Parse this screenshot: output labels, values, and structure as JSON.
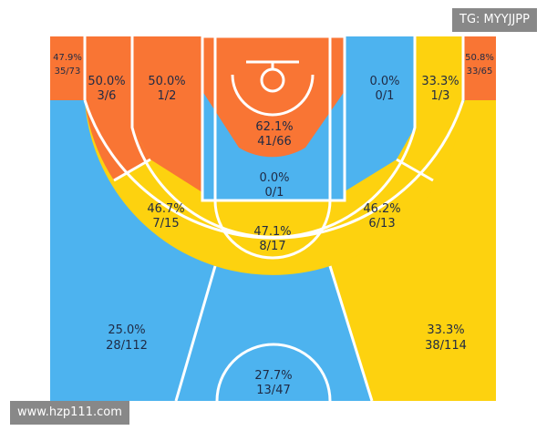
{
  "watermarks": {
    "top_right": "TG: MYYJJPP",
    "bottom_left": "www.hzp111.com"
  },
  "colors": {
    "cold": "#4db3ef",
    "warm": "#f97534",
    "neutral": "#fdd20f",
    "line": "#ffffff"
  },
  "zones": {
    "left_corner": {
      "pct": "47.9%",
      "frac": "35/73",
      "heat": "warm"
    },
    "right_corner": {
      "pct": "50.8%",
      "frac": "33/65",
      "heat": "warm"
    },
    "left_wing_mid": {
      "pct": "50.0%",
      "frac": "3/6",
      "heat": "warm"
    },
    "left_baseline_mid": {
      "pct": "50.0%",
      "frac": "1/2",
      "heat": "warm"
    },
    "restricted_area": {
      "pct": "62.1%",
      "frac": "41/66",
      "heat": "warm"
    },
    "right_baseline_mid": {
      "pct": "0.0%",
      "frac": "0/1",
      "heat": "cold"
    },
    "right_wing_mid": {
      "pct": "33.3%",
      "frac": "1/3",
      "heat": "neutral"
    },
    "paint_non_ra": {
      "pct": "0.0%",
      "frac": "0/1",
      "heat": "cold"
    },
    "left_elbow_mid": {
      "pct": "46.7%",
      "frac": "7/15",
      "heat": "neutral"
    },
    "top_key_mid": {
      "pct": "47.1%",
      "frac": "8/17",
      "heat": "neutral"
    },
    "right_elbow_mid": {
      "pct": "46.2%",
      "frac": "6/13",
      "heat": "neutral"
    },
    "left_wing_three": {
      "pct": "25.0%",
      "frac": "28/112",
      "heat": "cold"
    },
    "top_three": {
      "pct": "27.7%",
      "frac": "13/47",
      "heat": "cold"
    },
    "right_wing_three": {
      "pct": "33.3%",
      "frac": "38/114",
      "heat": "neutral"
    }
  }
}
